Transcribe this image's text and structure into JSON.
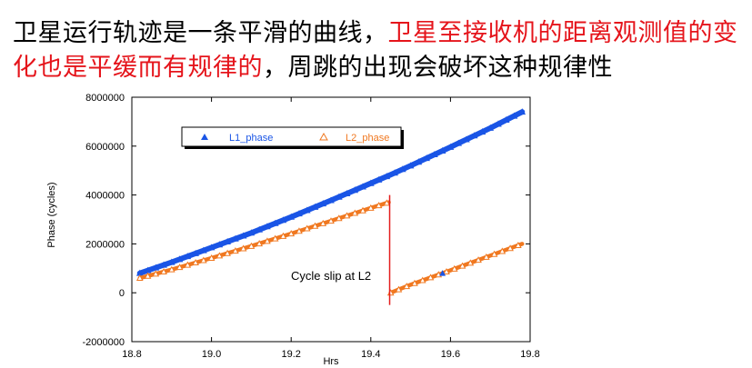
{
  "headline": {
    "part1": "卫星运行轨迹是一条平滑的曲线，",
    "part2_red": "卫星至接收机的距离观测值的变化也是平缓而有规律的",
    "part3": "，周跳的出现会破坏这种规律性"
  },
  "colors": {
    "red_text": "#e5141b",
    "l1": "#1a55e6",
    "l2": "#f07820",
    "slip_line": "#e41e1e"
  },
  "chart_data": {
    "type": "scatter",
    "xlabel": "Hrs",
    "ylabel": "Phase (cycles)",
    "xlim": [
      18.8,
      19.8
    ],
    "ylim": [
      -2000000,
      8000000
    ],
    "x_ticks": [
      "18.8",
      "19.0",
      "19.2",
      "19.4",
      "19.6",
      "19.8"
    ],
    "y_ticks": [
      "8000000",
      "6000000",
      "4000000",
      "2000000",
      "0",
      "-2000000"
    ],
    "legend_position": "top",
    "annotation": "Cycle slip at L2",
    "series": [
      {
        "name": "L1_phase",
        "marker": "filled-triangle",
        "x": [
          18.82,
          18.9,
          19.0,
          19.1,
          19.2,
          19.3,
          19.4,
          19.45,
          19.5,
          19.6,
          19.7,
          19.78
        ],
        "y": [
          800000,
          1250000,
          1850000,
          2450000,
          3100000,
          3780000,
          4480000,
          4830000,
          5200000,
          5960000,
          6740000,
          7400000
        ]
      },
      {
        "name": "L2_phase",
        "marker": "open-triangle",
        "x": [
          18.82,
          18.9,
          19.0,
          19.1,
          19.2,
          19.3,
          19.4,
          19.445,
          19.45,
          19.5,
          19.6,
          19.7,
          19.78
        ],
        "y": [
          600000,
          950000,
          1420000,
          1910000,
          2420000,
          2940000,
          3470000,
          3700000,
          0,
          330000,
          920000,
          1520000,
          2000000
        ]
      }
    ],
    "slip_x": 19.445,
    "slip_range": [
      -500000,
      4000000
    ],
    "outlier": {
      "x": 19.58,
      "y": 800000
    }
  }
}
